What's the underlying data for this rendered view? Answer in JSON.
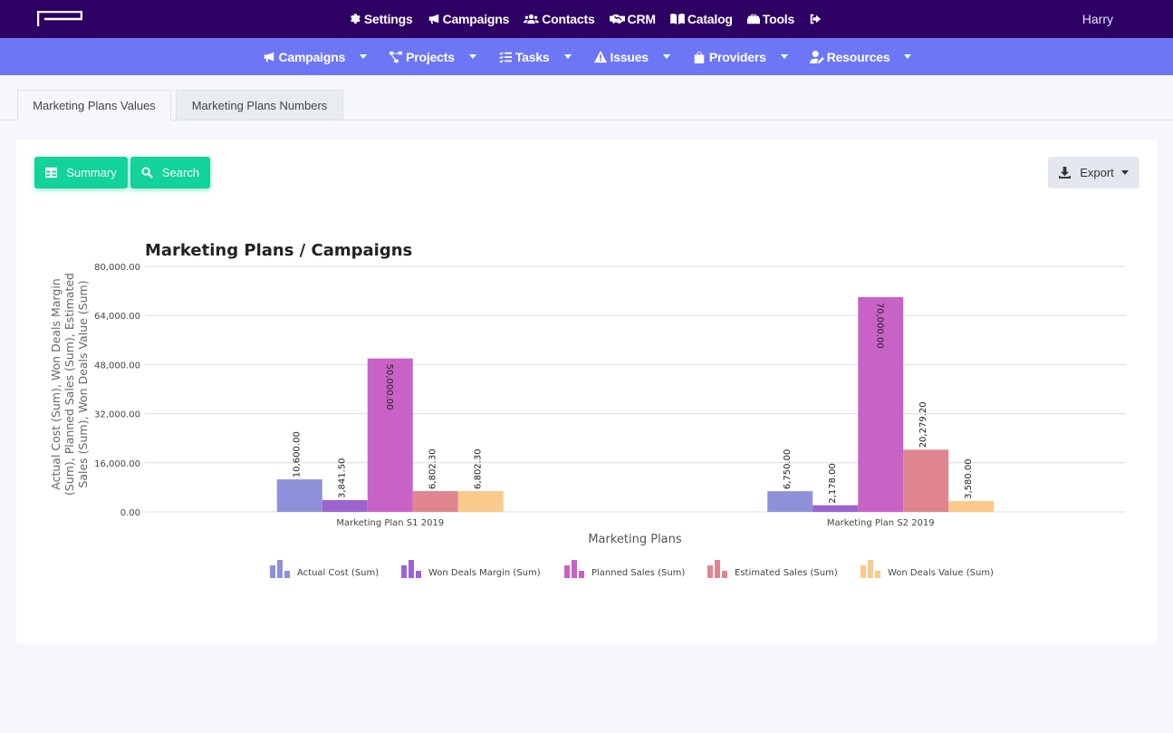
{
  "topnav": {
    "items": [
      {
        "label": "Settings",
        "icon": "gear-icon"
      },
      {
        "label": "Campaigns",
        "icon": "megaphone-icon"
      },
      {
        "label": "Contacts",
        "icon": "users-icon"
      },
      {
        "label": "CRM",
        "icon": "handshake-icon"
      },
      {
        "label": "Catalog",
        "icon": "book-icon"
      },
      {
        "label": "Tools",
        "icon": "toolbox-icon"
      }
    ],
    "logout_icon": "sign-out-icon",
    "user": "Harry"
  },
  "subnav": {
    "items": [
      {
        "label": "Campaigns",
        "icon": "megaphone-icon"
      },
      {
        "label": "Projects",
        "icon": "project-diagram-icon"
      },
      {
        "label": "Tasks",
        "icon": "tasks-icon"
      },
      {
        "label": "Issues",
        "icon": "warning-icon"
      },
      {
        "label": "Providers",
        "icon": "shopping-bag-icon"
      },
      {
        "label": "Resources",
        "icon": "user-edit-icon"
      }
    ]
  },
  "tabs": [
    {
      "label": "Marketing Plans Values",
      "active": true
    },
    {
      "label": "Marketing Plans Numbers",
      "active": false
    }
  ],
  "toolbar": {
    "summary_label": "Summary",
    "search_label": "Search",
    "export_label": "Export"
  },
  "colors": {
    "topbar": "#2d0063",
    "subbar": "#6d77f5",
    "accent_green": "#12d39a"
  },
  "chart_data": {
    "type": "bar",
    "title": "Marketing Plans / Campaigns",
    "xlabel": "Marketing Plans",
    "ylabel_lines": [
      "Actual Cost (Sum), Won Deals Margin",
      "(Sum), Planned Sales (Sum), Estimated",
      "Sales (Sum), Won Deals Value (Sum)"
    ],
    "categories": [
      "Marketing Plan S1 2019",
      "Marketing Plan S2 2019"
    ],
    "ylim": [
      0,
      80000
    ],
    "yticks": [
      "0.00",
      "16,000.00",
      "32,000.00",
      "48,000.00",
      "64,000.00",
      "80,000.00"
    ],
    "grid": true,
    "legend_position": "bottom",
    "series": [
      {
        "name": "Actual Cost (Sum)",
        "color": "#8e91d9",
        "values": [
          10600.0,
          6750.0
        ],
        "labels": [
          "10,600.00",
          "6,750.00"
        ]
      },
      {
        "name": "Won Deals Margin (Sum)",
        "color": "#9c64cf",
        "values": [
          3841.5,
          2178.0
        ],
        "labels": [
          "3,841.50",
          "2,178.00"
        ]
      },
      {
        "name": "Planned Sales (Sum)",
        "color": "#c862c6",
        "values": [
          50000.0,
          70000.0
        ],
        "labels": [
          "50,000.00",
          "70,000.00"
        ]
      },
      {
        "name": "Estimated Sales (Sum)",
        "color": "#e08691",
        "values": [
          6802.3,
          20279.2
        ],
        "labels": [
          "6,802.30",
          "20,279.20"
        ]
      },
      {
        "name": "Won Deals Value (Sum)",
        "color": "#f9ca8c",
        "values": [
          6802.3,
          3580.0
        ],
        "labels": [
          "6,802.30",
          "3,580.00"
        ]
      }
    ]
  }
}
